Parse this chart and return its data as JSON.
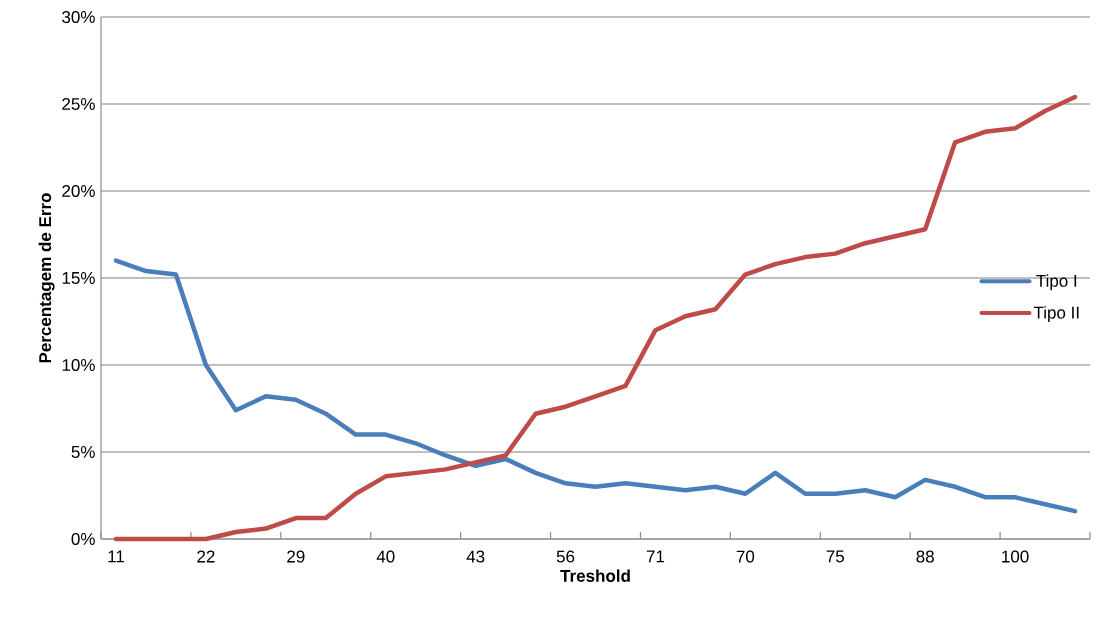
{
  "chart_data": {
    "type": "line",
    "xlabel": "Treshold",
    "ylabel": "Percentagem de Erro",
    "categories": [
      "11",
      null,
      null,
      "22",
      null,
      null,
      "29",
      null,
      null,
      "40",
      null,
      null,
      "43",
      null,
      null,
      "56",
      null,
      null,
      "71",
      null,
      null,
      "70",
      null,
      null,
      "75",
      null,
      null,
      "88",
      null,
      null,
      "100",
      null,
      null
    ],
    "series": [
      {
        "name": "Tipo I",
        "color": "#4a7ebb",
        "values": [
          16.0,
          15.4,
          15.2,
          10.0,
          7.4,
          8.2,
          8.0,
          7.2,
          6.0,
          6.0,
          5.5,
          4.8,
          4.2,
          4.6,
          3.8,
          3.2,
          3.0,
          3.2,
          3.0,
          2.8,
          3.0,
          2.6,
          3.8,
          2.6,
          2.6,
          2.8,
          2.4,
          3.4,
          3.0,
          2.4,
          2.4,
          2.0,
          1.6
        ]
      },
      {
        "name": "Tipo II",
        "color": "#be4b48",
        "values": [
          0,
          0,
          0,
          0,
          0.4,
          0.6,
          1.2,
          1.2,
          2.6,
          3.6,
          3.8,
          4.0,
          4.4,
          4.8,
          7.2,
          7.6,
          8.2,
          8.8,
          12.0,
          12.8,
          13.2,
          15.2,
          15.8,
          16.2,
          16.4,
          17.0,
          17.4,
          17.8,
          22.8,
          23.4,
          23.6,
          24.6,
          25.4
        ]
      }
    ],
    "ylim": [
      0,
      30
    ],
    "yticks": [
      {
        "value": 0,
        "label": "0%"
      },
      {
        "value": 5,
        "label": "5%"
      },
      {
        "value": 10,
        "label": "10%"
      },
      {
        "value": 15,
        "label": "15%"
      },
      {
        "value": 20,
        "label": "20%"
      },
      {
        "value": 25,
        "label": "25%"
      },
      {
        "value": 30,
        "label": "30%"
      }
    ],
    "grid": "y",
    "legend": "right"
  }
}
